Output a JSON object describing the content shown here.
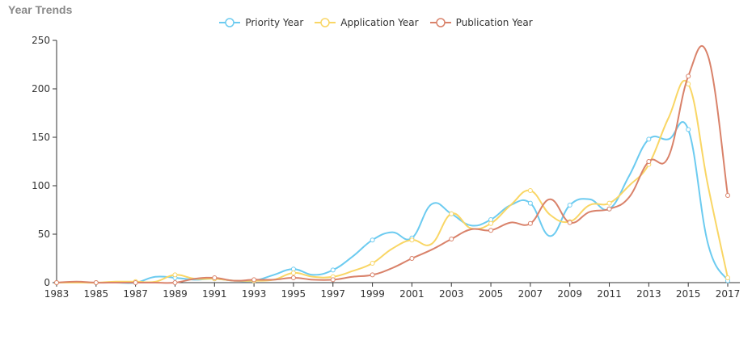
{
  "chart_data": {
    "type": "line",
    "title": "Year Trends",
    "xlabel": "",
    "ylabel": "",
    "ylim": [
      0,
      250
    ],
    "yticks": [
      0,
      50,
      100,
      150,
      200,
      250
    ],
    "xticks": [
      "1983",
      "1985",
      "1987",
      "1989",
      "1991",
      "1993",
      "1995",
      "1997",
      "1999",
      "2001",
      "2003",
      "2005",
      "2007",
      "2009",
      "2011",
      "2013",
      "2015",
      "2017"
    ],
    "x": [
      1983,
      1984,
      1985,
      1986,
      1987,
      1988,
      1989,
      1990,
      1991,
      1992,
      1993,
      1994,
      1995,
      1996,
      1997,
      1998,
      1999,
      2000,
      2001,
      2002,
      2003,
      2004,
      2005,
      2006,
      2007,
      2008,
      2009,
      2010,
      2011,
      2012,
      2013,
      2014,
      2015,
      2016,
      2017
    ],
    "legend_position": "top-center",
    "grid": false,
    "series": [
      {
        "name": "Priority Year",
        "color": "#6ccbf0",
        "values": [
          0,
          0,
          0,
          0,
          0,
          6,
          5,
          3,
          4,
          2,
          2,
          8,
          14,
          8,
          13,
          27,
          44,
          52,
          46,
          81,
          71,
          59,
          65,
          80,
          82,
          48,
          80,
          86,
          76,
          110,
          148,
          148,
          158,
          40,
          2
        ]
      },
      {
        "name": "Application Year",
        "color": "#f9d665",
        "values": [
          0,
          0,
          0,
          1,
          1,
          1,
          8,
          4,
          4,
          2,
          2,
          3,
          10,
          6,
          6,
          12,
          20,
          35,
          44,
          40,
          71,
          56,
          61,
          80,
          95,
          70,
          63,
          80,
          82,
          100,
          122,
          170,
          205,
          100,
          5
        ]
      },
      {
        "name": "Publication Year",
        "color": "#d9826a",
        "values": [
          0,
          1,
          0,
          0,
          0,
          0,
          0,
          4,
          5,
          2,
          3,
          3,
          5,
          3,
          3,
          6,
          8,
          15,
          25,
          34,
          45,
          55,
          54,
          62,
          61,
          86,
          62,
          73,
          76,
          88,
          125,
          130,
          213,
          234,
          90
        ]
      }
    ]
  }
}
